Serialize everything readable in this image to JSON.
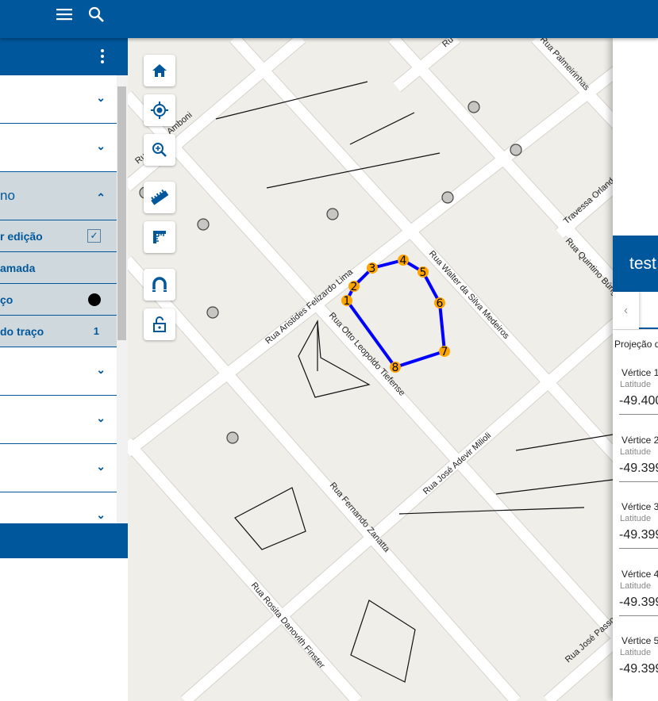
{
  "topbar": {
    "menu_icon": "hamburger-icon",
    "search_icon": "search-icon"
  },
  "left_panel": {
    "items": [
      {
        "label": "",
        "state": "collapsed"
      },
      {
        "label": "",
        "state": "collapsed"
      },
      {
        "label": "no",
        "state": "expanded",
        "subitems": [
          {
            "label": "r edição",
            "control": "checkbox",
            "checked": true
          },
          {
            "label": "amada"
          },
          {
            "label": "ço",
            "control": "color",
            "color": "#000000"
          },
          {
            "label": " do traço",
            "value": "1"
          }
        ]
      },
      {
        "label": "",
        "state": "collapsed"
      },
      {
        "label": "",
        "state": "collapsed"
      },
      {
        "label": "",
        "state": "collapsed"
      },
      {
        "label": "",
        "state": "collapsed"
      }
    ]
  },
  "map": {
    "tools": [
      "home-icon",
      "locate-icon",
      "zoom-in-icon",
      "measure-ruler-icon",
      "area-ruler-icon",
      "snap-magnet-icon",
      "unlock-icon"
    ],
    "streets": [
      "Rua Aristides Felizardo Lima",
      "Rua Otto Leopoldo Tiefense",
      "Rua Walter da Silva Medeiros",
      "Rua Palmeirinhas",
      "Travessa Orland",
      "Rua Quintino Búrig",
      "Rua José Adevir Milioli",
      "Rua Fernando Zanatta",
      "Rua Rosita Danovith Finster",
      "Rua José Passos",
      "Ru",
      "Amboni",
      "Ru"
    ],
    "vertices": [
      "1",
      "2",
      "3",
      "4",
      "5",
      "6",
      "7",
      "8"
    ],
    "colors": {
      "polygon": "#0000ff",
      "vertex": "#ffa500",
      "road": "#ffffff",
      "ground": "#f0eee9"
    }
  },
  "right_panel": {
    "title": "test",
    "prev_icon": "chevron-left-icon",
    "projection": "Projeção d",
    "vertices": [
      {
        "title": "Vértice 1",
        "label": "Latitude",
        "value": "-49.400"
      },
      {
        "title": "Vértice 2",
        "label": "Latitude",
        "value": "-49.399"
      },
      {
        "title": "Vértice 3",
        "label": "Latitude",
        "value": "-49.399"
      },
      {
        "title": "Vértice 4",
        "label": "Latitude",
        "value": "-49.399"
      },
      {
        "title": "Vértice 5",
        "label": "Latitude",
        "value": "-49.399"
      }
    ]
  }
}
